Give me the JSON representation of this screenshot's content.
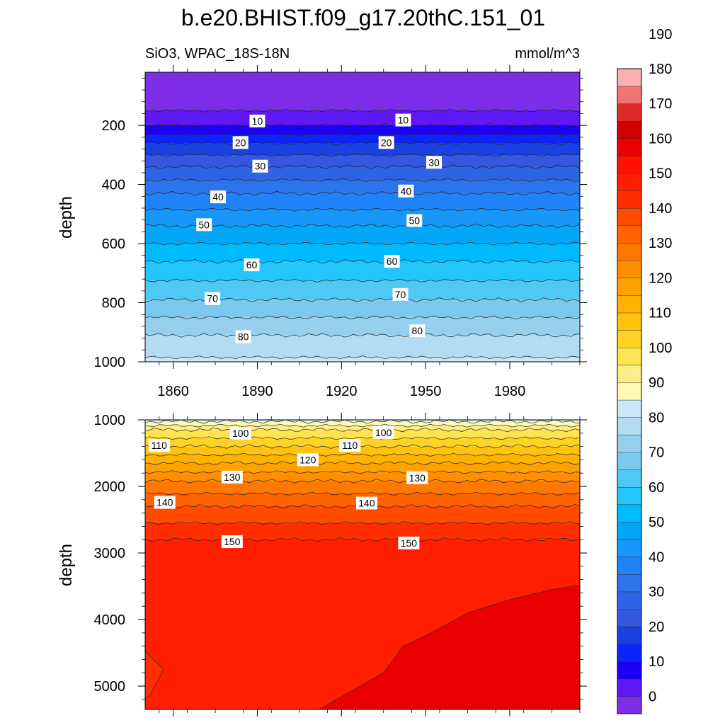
{
  "chart_data": {
    "type": "contour",
    "title": "b.e20.BHIST.f09_g17.20thC.151_01",
    "subtitle_left": "SiO3, WPAC_18S-18N",
    "units": "mmol/m^3",
    "time_range": [
      1850,
      2005
    ],
    "x_ticks": [
      1860,
      1890,
      1920,
      1950,
      1980
    ],
    "colorbar": {
      "levels": [
        0,
        10,
        20,
        30,
        40,
        50,
        60,
        70,
        80,
        90,
        100,
        110,
        120,
        130,
        140,
        150,
        160,
        170,
        180,
        190
      ],
      "colors": [
        "#7e2ee6",
        "#5f17f3",
        "#1d00f6",
        "#0d24f9",
        "#1b40e0",
        "#3557df",
        "#2f64e6",
        "#2c73ec",
        "#1f82f6",
        "#1896fa",
        "#04a6f8",
        "#00baff",
        "#22c6fb",
        "#50c8f4",
        "#7cc9f0",
        "#97d0ef",
        "#b1dcf2",
        "#cbe8f8",
        "#fff9b5",
        "#ffed87",
        "#ffe352",
        "#ffd326",
        "#ffc20e",
        "#ffb200",
        "#ffa100",
        "#ff8f00",
        "#ff7800",
        "#ff6200",
        "#ff4a00",
        "#ff2e00",
        "#ff1e00",
        "#ff1200",
        "#ea0000",
        "#d00000",
        "#e02a2a",
        "#f07575",
        "#f8b0b0"
      ]
    },
    "panels": [
      {
        "name": "upper",
        "ylabel": "depth",
        "ylim": [
          1000,
          20
        ],
        "y_ticks": [
          200,
          400,
          600,
          800,
          1000
        ],
        "profile": [
          {
            "depth": 20,
            "value": 2
          },
          {
            "depth": 150,
            "value": 5
          },
          {
            "depth": 200,
            "value": 10
          },
          {
            "depth": 260,
            "value": 20
          },
          {
            "depth": 340,
            "value": 30
          },
          {
            "depth": 430,
            "value": 40
          },
          {
            "depth": 540,
            "value": 50
          },
          {
            "depth": 660,
            "value": 60
          },
          {
            "depth": 790,
            "value": 70
          },
          {
            "depth": 910,
            "value": 80
          },
          {
            "depth": 1000,
            "value": 86
          }
        ],
        "contour_labels": [
          {
            "value": "10",
            "year": 1890,
            "depth": 185
          },
          {
            "value": "10",
            "year": 1942,
            "depth": 182
          },
          {
            "value": "20",
            "year": 1884,
            "depth": 258
          },
          {
            "value": "20",
            "year": 1936,
            "depth": 258
          },
          {
            "value": "30",
            "year": 1891,
            "depth": 338
          },
          {
            "value": "30",
            "year": 1953,
            "depth": 325
          },
          {
            "value": "40",
            "year": 1876,
            "depth": 442
          },
          {
            "value": "40",
            "year": 1943,
            "depth": 422
          },
          {
            "value": "50",
            "year": 1871,
            "depth": 536
          },
          {
            "value": "50",
            "year": 1946,
            "depth": 522
          },
          {
            "value": "60",
            "year": 1888,
            "depth": 672
          },
          {
            "value": "60",
            "year": 1938,
            "depth": 660
          },
          {
            "value": "70",
            "year": 1874,
            "depth": 786
          },
          {
            "value": "70",
            "year": 1941,
            "depth": 772
          },
          {
            "value": "80",
            "year": 1885,
            "depth": 915
          },
          {
            "value": "80",
            "year": 1947,
            "depth": 895
          }
        ]
      },
      {
        "name": "lower",
        "ylabel": "depth",
        "ylim": [
          5350,
          1000
        ],
        "y_ticks": [
          1000,
          2000,
          3000,
          4000,
          5000
        ],
        "profile": [
          {
            "depth": 1000,
            "value": 88
          },
          {
            "depth": 1050,
            "value": 92
          },
          {
            "depth": 1150,
            "value": 100
          },
          {
            "depth": 1400,
            "value": 110
          },
          {
            "depth": 1650,
            "value": 120
          },
          {
            "depth": 1920,
            "value": 130
          },
          {
            "depth": 2300,
            "value": 140
          },
          {
            "depth": 2800,
            "value": 150
          },
          {
            "depth": 5350,
            "value": 155
          }
        ],
        "deep_region_160": [
          {
            "year": 1912,
            "depth": 5350
          },
          {
            "year": 1935,
            "depth": 4800
          },
          {
            "year": 1942,
            "depth": 4400
          },
          {
            "year": 1952,
            "depth": 4200
          },
          {
            "year": 1965,
            "depth": 3900
          },
          {
            "year": 1980,
            "depth": 3700
          },
          {
            "year": 1995,
            "depth": 3550
          },
          {
            "year": 2005,
            "depth": 3480
          }
        ],
        "contour_labels": [
          {
            "value": "100",
            "year": 1884,
            "depth": 1200
          },
          {
            "value": "100",
            "year": 1935,
            "depth": 1190
          },
          {
            "value": "110",
            "year": 1855,
            "depth": 1385
          },
          {
            "value": "110",
            "year": 1923,
            "depth": 1385
          },
          {
            "value": "120",
            "year": 1908,
            "depth": 1600
          },
          {
            "value": "130",
            "year": 1881,
            "depth": 1860
          },
          {
            "value": "130",
            "year": 1947,
            "depth": 1870
          },
          {
            "value": "140",
            "year": 1857,
            "depth": 2240
          },
          {
            "value": "140",
            "year": 1929,
            "depth": 2250
          },
          {
            "value": "150",
            "year": 1881,
            "depth": 2830
          },
          {
            "value": "150",
            "year": 1944,
            "depth": 2850
          }
        ]
      }
    ]
  },
  "colors": {
    "contour_line": "#222222"
  }
}
